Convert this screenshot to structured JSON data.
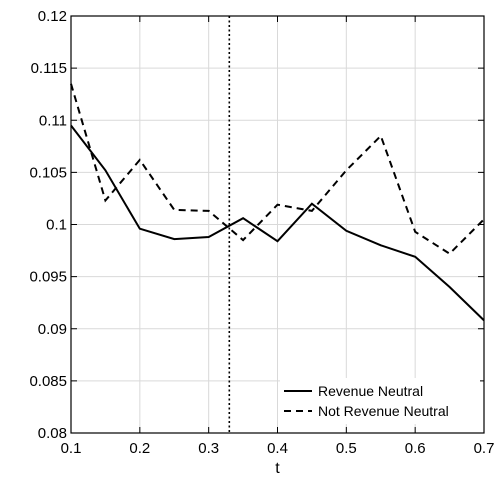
{
  "chart_data": {
    "type": "line",
    "title": "",
    "xlabel": "t",
    "ylabel": "",
    "xlim": [
      0.1,
      0.7
    ],
    "ylim": [
      0.08,
      0.12
    ],
    "x_ticks": [
      "0.1",
      "0.2",
      "0.3",
      "0.4",
      "0.5",
      "0.6",
      "0.7"
    ],
    "y_ticks": [
      "0.08",
      "0.085",
      "0.09",
      "0.095",
      "0.1",
      "0.105",
      "0.11",
      "0.115",
      "0.12"
    ],
    "grid": true,
    "legend_position": "bottom-right",
    "vertical_reference_line": {
      "x": 0.33,
      "style": "dotted",
      "color": "#000000"
    },
    "series": [
      {
        "name": "Revenue Neutral",
        "style": "solid",
        "color": "#000000",
        "x": [
          0.1,
          0.15,
          0.2,
          0.25,
          0.3,
          0.35,
          0.4,
          0.45,
          0.5,
          0.55,
          0.6,
          0.65,
          0.7
        ],
        "y": [
          0.1095,
          0.1052,
          0.0996,
          0.0986,
          0.0988,
          0.1006,
          0.0984,
          0.102,
          0.0994,
          0.098,
          0.0969,
          0.094,
          0.0908
        ]
      },
      {
        "name": "Not Revenue Neutral",
        "style": "dashed",
        "color": "#000000",
        "x": [
          0.1,
          0.15,
          0.2,
          0.25,
          0.3,
          0.35,
          0.4,
          0.45,
          0.5,
          0.55,
          0.6,
          0.65,
          0.7
        ],
        "y": [
          0.1135,
          0.1023,
          0.1062,
          0.1014,
          0.1013,
          0.0985,
          0.1019,
          0.1013,
          0.1052,
          0.1085,
          0.0993,
          0.0972,
          0.1005
        ]
      }
    ]
  }
}
